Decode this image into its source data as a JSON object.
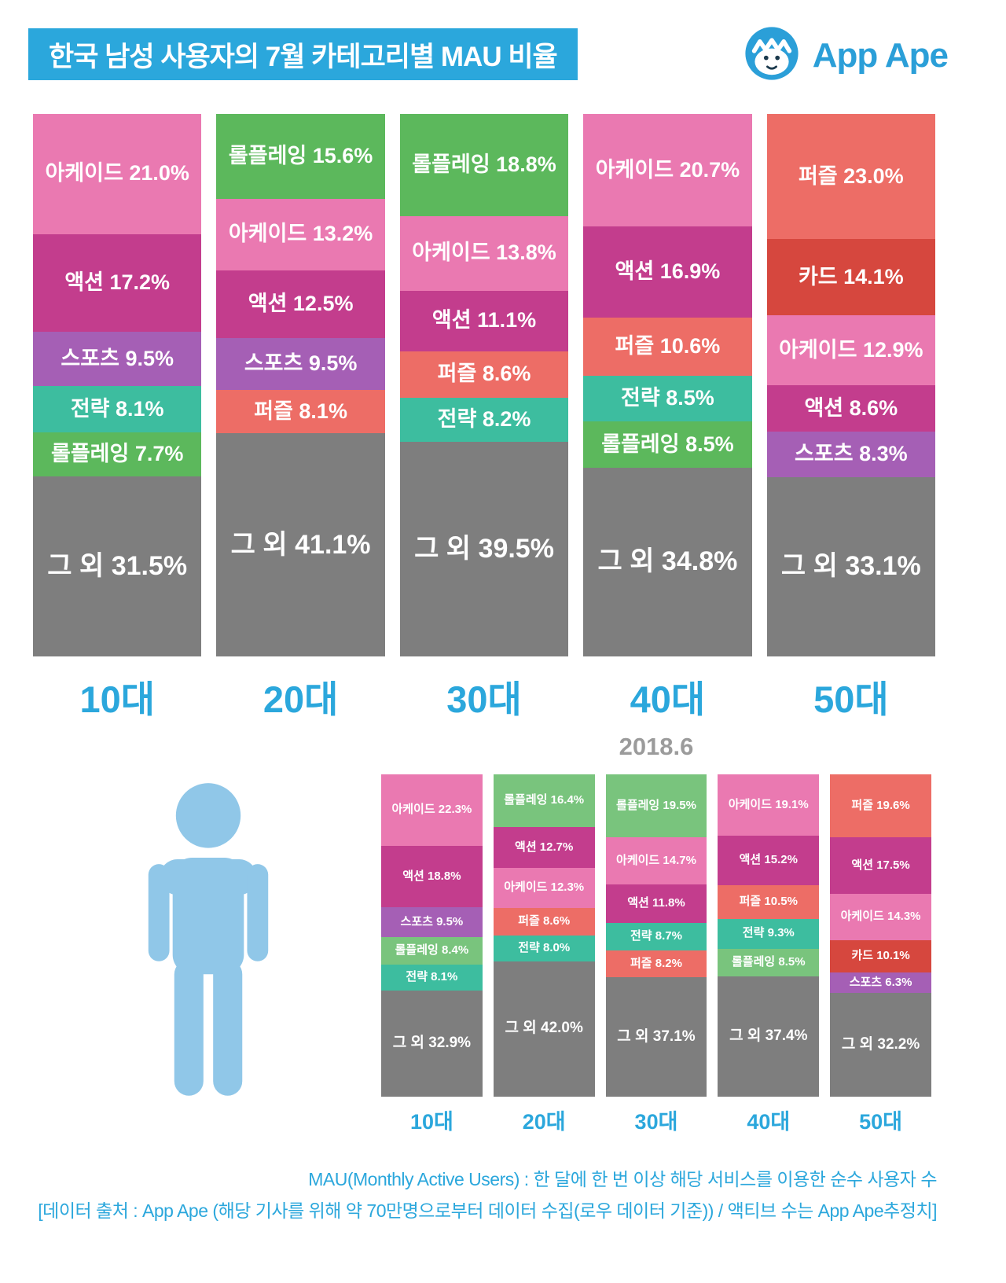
{
  "header": {
    "title": "한국 남성 사용자의 7월 카테고리별 MAU 비율",
    "logo_text": "App Ape"
  },
  "palette": {
    "arcade": "#EA79B1",
    "action": "#C33D8D",
    "sports": "#A55FB5",
    "strategy": "#3DBD9F",
    "roleplaying": "#5CB85C",
    "roleplaying_light": "#79C47D",
    "puzzle": "#ED6D66",
    "card": "#D6473E",
    "others": "#7E7E7E",
    "accent_blue": "#2BA7DC",
    "person_blue": "#90C7E8",
    "small_title_gray": "#9B9B9B"
  },
  "chart_data": [
    {
      "type": "bar",
      "stacked": true,
      "title": "한국 남성 사용자의 7월 카테고리별 MAU 비율",
      "unit": "%",
      "categories": [
        "10대",
        "20대",
        "30대",
        "40대",
        "50대"
      ],
      "columns": [
        {
          "age": "10대",
          "segments": [
            {
              "label": "아케이드",
              "value": 21.0,
              "color": "arcade"
            },
            {
              "label": "액션",
              "value": 17.2,
              "color": "action"
            },
            {
              "label": "스포츠",
              "value": 9.5,
              "color": "sports"
            },
            {
              "label": "전략",
              "value": 8.1,
              "color": "strategy"
            },
            {
              "label": "롤플레잉",
              "value": 7.7,
              "color": "roleplaying"
            },
            {
              "label": "그 외",
              "value": 31.5,
              "color": "others"
            }
          ]
        },
        {
          "age": "20대",
          "segments": [
            {
              "label": "롤플레잉",
              "value": 15.6,
              "color": "roleplaying"
            },
            {
              "label": "아케이드",
              "value": 13.2,
              "color": "arcade"
            },
            {
              "label": "액션",
              "value": 12.5,
              "color": "action"
            },
            {
              "label": "스포츠",
              "value": 9.5,
              "color": "sports"
            },
            {
              "label": "퍼즐",
              "value": 8.1,
              "color": "puzzle"
            },
            {
              "label": "그 외",
              "value": 41.1,
              "color": "others"
            }
          ]
        },
        {
          "age": "30대",
          "segments": [
            {
              "label": "롤플레잉",
              "value": 18.8,
              "color": "roleplaying"
            },
            {
              "label": "아케이드",
              "value": 13.8,
              "color": "arcade"
            },
            {
              "label": "액션",
              "value": 11.1,
              "color": "action"
            },
            {
              "label": "퍼즐",
              "value": 8.6,
              "color": "puzzle"
            },
            {
              "label": "전략",
              "value": 8.2,
              "color": "strategy"
            },
            {
              "label": "그 외",
              "value": 39.5,
              "color": "others"
            }
          ]
        },
        {
          "age": "40대",
          "segments": [
            {
              "label": "아케이드",
              "value": 20.7,
              "color": "arcade"
            },
            {
              "label": "액션",
              "value": 16.9,
              "color": "action"
            },
            {
              "label": "퍼즐",
              "value": 10.6,
              "color": "puzzle"
            },
            {
              "label": "전략",
              "value": 8.5,
              "color": "strategy"
            },
            {
              "label": "롤플레잉",
              "value": 8.5,
              "color": "roleplaying"
            },
            {
              "label": "그 외",
              "value": 34.8,
              "color": "others"
            }
          ]
        },
        {
          "age": "50대",
          "segments": [
            {
              "label": "퍼즐",
              "value": 23.0,
              "color": "puzzle"
            },
            {
              "label": "카드",
              "value": 14.1,
              "color": "card"
            },
            {
              "label": "아케이드",
              "value": 12.9,
              "color": "arcade"
            },
            {
              "label": "액션",
              "value": 8.6,
              "color": "action"
            },
            {
              "label": "스포츠",
              "value": 8.3,
              "color": "sports"
            },
            {
              "label": "그 외",
              "value": 33.1,
              "color": "others"
            }
          ]
        }
      ]
    },
    {
      "type": "bar",
      "stacked": true,
      "title": "2018.6",
      "unit": "%",
      "categories": [
        "10대",
        "20대",
        "30대",
        "40대",
        "50대"
      ],
      "columns": [
        {
          "age": "10대",
          "segments": [
            {
              "label": "아케이드",
              "value": 22.3,
              "color": "arcade"
            },
            {
              "label": "액션",
              "value": 18.8,
              "color": "action"
            },
            {
              "label": "스포츠",
              "value": 9.5,
              "color": "sports"
            },
            {
              "label": "롤플레잉",
              "value": 8.4,
              "color": "roleplaying_light"
            },
            {
              "label": "전략",
              "value": 8.1,
              "color": "strategy"
            },
            {
              "label": "그 외",
              "value": 32.9,
              "color": "others"
            }
          ]
        },
        {
          "age": "20대",
          "segments": [
            {
              "label": "롤플레잉",
              "value": 16.4,
              "color": "roleplaying_light"
            },
            {
              "label": "액션",
              "value": 12.7,
              "color": "action"
            },
            {
              "label": "아케이드",
              "value": 12.3,
              "color": "arcade"
            },
            {
              "label": "퍼즐",
              "value": 8.6,
              "color": "puzzle"
            },
            {
              "label": "전략",
              "value": 8.0,
              "color": "strategy"
            },
            {
              "label": "그 외",
              "value": 42.0,
              "color": "others"
            }
          ]
        },
        {
          "age": "30대",
          "segments": [
            {
              "label": "롤플레잉",
              "value": 19.5,
              "color": "roleplaying_light"
            },
            {
              "label": "아케이드",
              "value": 14.7,
              "color": "arcade"
            },
            {
              "label": "액션",
              "value": 11.8,
              "color": "action"
            },
            {
              "label": "전략",
              "value": 8.7,
              "color": "strategy"
            },
            {
              "label": "퍼즐",
              "value": 8.2,
              "color": "puzzle"
            },
            {
              "label": "그 외",
              "value": 37.1,
              "color": "others"
            }
          ]
        },
        {
          "age": "40대",
          "segments": [
            {
              "label": "아케이드",
              "value": 19.1,
              "color": "arcade"
            },
            {
              "label": "액션",
              "value": 15.2,
              "color": "action"
            },
            {
              "label": "퍼즐",
              "value": 10.5,
              "color": "puzzle"
            },
            {
              "label": "전략",
              "value": 9.3,
              "color": "strategy"
            },
            {
              "label": "롤플레잉",
              "value": 8.5,
              "color": "roleplaying_light"
            },
            {
              "label": "그 외",
              "value": 37.4,
              "color": "others"
            }
          ]
        },
        {
          "age": "50대",
          "segments": [
            {
              "label": "퍼즐",
              "value": 19.6,
              "color": "puzzle"
            },
            {
              "label": "액션",
              "value": 17.5,
              "color": "action"
            },
            {
              "label": "아케이드",
              "value": 14.3,
              "color": "arcade"
            },
            {
              "label": "카드",
              "value": 10.1,
              "color": "card"
            },
            {
              "label": "스포츠",
              "value": 6.3,
              "color": "sports"
            },
            {
              "label": "그 외",
              "value": 32.2,
              "color": "others"
            }
          ]
        }
      ]
    }
  ],
  "footer": {
    "line1": "MAU(Monthly Active Users) : 한 달에 한 번 이상 해당 서비스를 이용한 순수 사용자 수",
    "line2": "[데이터 출처 : App Ape (해당 기사를 위해 약 70만명으로부터 데이터 수집(로우 데이터 기준)) / 액티브 수는 App Ape추정치]"
  }
}
